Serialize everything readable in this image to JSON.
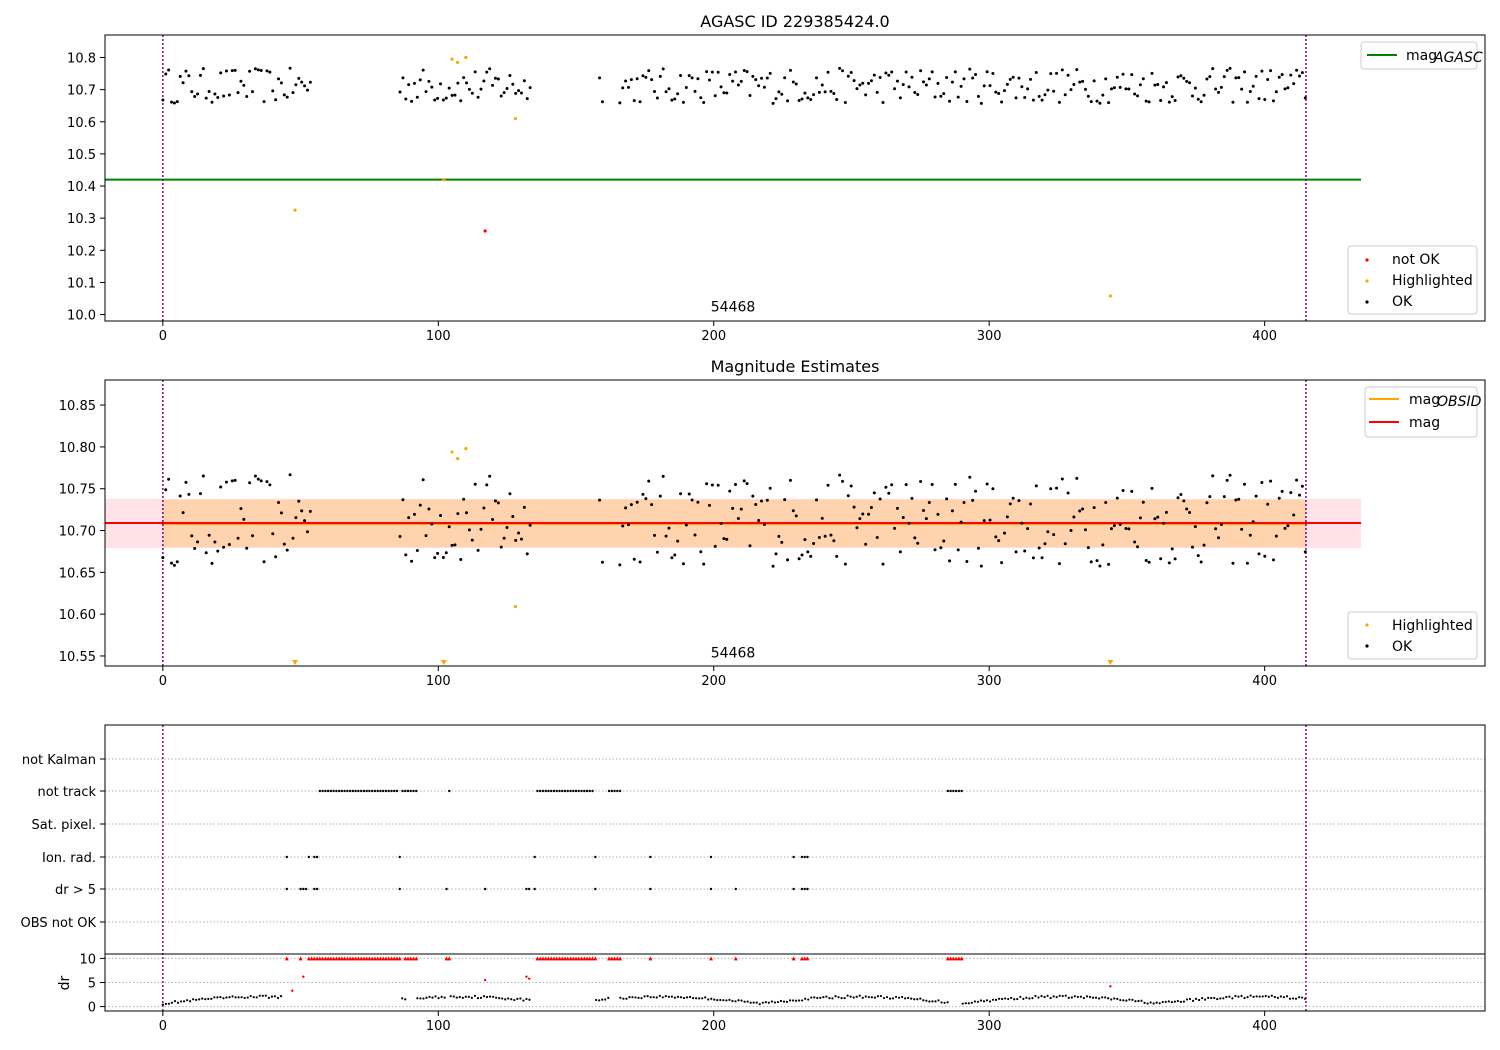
{
  "chart_data": [
    {
      "type": "scatter",
      "title": "AGASC ID 229385424.0",
      "xlim": [
        -21,
        480
      ],
      "ylim": [
        9.98,
        10.87
      ],
      "xticks": [
        0,
        100,
        200,
        300,
        400
      ],
      "yticks": [
        10.0,
        10.1,
        10.2,
        10.3,
        10.4,
        10.5,
        10.6,
        10.7,
        10.8
      ],
      "ytick_labels": [
        "10.0",
        "10.1",
        "10.2",
        "10.3",
        "10.4",
        "10.5",
        "10.6",
        "10.7",
        "10.8"
      ],
      "obs_boundaries": [
        0,
        415
      ],
      "obsid_annotation": {
        "x": 207,
        "y": 10.01,
        "text": "54468"
      },
      "mag_agasc": {
        "value": 10.42,
        "x_range": [
          -21,
          435
        ],
        "color": "#008000"
      },
      "ok_gaps": [
        [
          54,
          86
        ],
        [
          134,
          158
        ],
        [
          160,
          165
        ]
      ],
      "highlighted": [
        {
          "x": 48,
          "y": 10.325
        },
        {
          "x": 102,
          "y": 10.42
        },
        {
          "x": 105,
          "y": 10.795
        },
        {
          "x": 107,
          "y": 10.785
        },
        {
          "x": 110,
          "y": 10.8
        },
        {
          "x": 128,
          "y": 10.61
        },
        {
          "x": 344,
          "y": 10.058
        }
      ],
      "not_ok": [
        {
          "x": 117,
          "y": 10.26
        }
      ],
      "legend_upper": [
        {
          "label": "mag",
          "sub": "AGASC",
          "color": "#008000"
        }
      ],
      "legend_lower": [
        {
          "label": "not OK",
          "color": "#ff0000"
        },
        {
          "label": "Highlighted",
          "color": "#ffa500"
        },
        {
          "label": "OK",
          "color": "#000000"
        }
      ]
    },
    {
      "type": "scatter",
      "title": "Magnitude Estimates",
      "xlim": [
        -21,
        480
      ],
      "ylim": [
        10.538,
        10.88
      ],
      "xticks": [
        0,
        100,
        200,
        300,
        400
      ],
      "yticks": [
        10.55,
        10.6,
        10.65,
        10.7,
        10.75,
        10.8,
        10.85
      ],
      "ytick_labels": [
        "10.55",
        "10.60",
        "10.65",
        "10.70",
        "10.75",
        "10.80",
        "10.85"
      ],
      "obs_boundaries": [
        0,
        415
      ],
      "obsid_annotation": {
        "x": 207,
        "y": 10.548,
        "text": "54468"
      },
      "mag": {
        "value": 10.709,
        "x_range": [
          -21,
          435
        ],
        "band": [
          10.679,
          10.738
        ],
        "color": "#ff0000"
      },
      "mag_obsid": {
        "value": 10.708,
        "x_range": [
          0,
          415
        ],
        "band": [
          10.68,
          10.737
        ],
        "color": "#ffa500"
      },
      "highlighted": [
        {
          "x": 105,
          "y": 10.794
        },
        {
          "x": 107,
          "y": 10.786
        },
        {
          "x": 110,
          "y": 10.798
        },
        {
          "x": 128,
          "y": 10.609
        }
      ],
      "below_axis": [
        48,
        102,
        344
      ],
      "legend_upper": [
        {
          "label": "mag",
          "sub": "OBSID",
          "color": "#ffa500"
        },
        {
          "label": "mag",
          "sub": "",
          "color": "#ff0000"
        }
      ],
      "legend_lower": [
        {
          "label": "Highlighted",
          "color": "#ffa500"
        },
        {
          "label": "OK",
          "color": "#000000"
        }
      ]
    },
    {
      "type": "scatter",
      "title": "",
      "xlim": [
        -21,
        480
      ],
      "xticks": [
        0,
        100,
        200,
        300,
        400
      ],
      "obs_boundaries": [
        0,
        415
      ],
      "flag_rows": [
        "not Kalman",
        "not track",
        "Sat. pixel.",
        "Ion. rad.",
        "dr > 5",
        "OBS not OK"
      ],
      "flags": {
        "not track": [
          [
            57,
            85
          ],
          [
            87,
            92
          ],
          [
            104,
            104
          ],
          [
            136,
            156
          ],
          [
            162,
            166
          ],
          [
            285,
            290
          ]
        ],
        "Ion. rad.": [
          [
            45,
            45
          ],
          [
            53,
            53
          ],
          [
            55,
            56
          ],
          [
            86,
            86
          ],
          [
            135,
            135
          ],
          [
            157,
            157
          ],
          [
            177,
            177
          ],
          [
            199,
            199
          ],
          [
            229,
            229
          ],
          [
            232,
            234
          ]
        ],
        "dr > 5": [
          [
            45,
            45
          ],
          [
            50,
            52
          ],
          [
            55,
            56
          ],
          [
            86,
            86
          ],
          [
            103,
            103
          ],
          [
            117,
            117
          ],
          [
            132,
            133
          ],
          [
            135,
            135
          ],
          [
            157,
            157
          ],
          [
            177,
            177
          ],
          [
            199,
            199
          ],
          [
            208,
            208
          ],
          [
            229,
            229
          ],
          [
            232,
            234
          ]
        ]
      },
      "dr": {
        "ylabel": "dr",
        "yticks": [
          0,
          5,
          10
        ],
        "ylim": [
          -0.5,
          10.5
        ],
        "red_at_10": [
          [
            45,
            45
          ],
          [
            50,
            50
          ],
          [
            53,
            86
          ],
          [
            88,
            92
          ],
          [
            103,
            104
          ],
          [
            136,
            157
          ],
          [
            162,
            166
          ],
          [
            177,
            177
          ],
          [
            199,
            199
          ],
          [
            208,
            208
          ],
          [
            229,
            229
          ],
          [
            232,
            234
          ],
          [
            285,
            290
          ]
        ],
        "red_points": [
          {
            "x": 47,
            "y": 3.3
          },
          {
            "x": 51,
            "y": 6.2
          },
          {
            "x": 117,
            "y": 5.5
          },
          {
            "x": 132,
            "y": 6.2
          },
          {
            "x": 133,
            "y": 5.8
          },
          {
            "x": 344,
            "y": 4.2
          }
        ],
        "black_gaps": [
          [
            44,
            86
          ],
          [
            88,
            92
          ],
          [
            103,
            104
          ],
          [
            134,
            157
          ],
          [
            162,
            166
          ],
          [
            285,
            290
          ]
        ]
      }
    }
  ]
}
